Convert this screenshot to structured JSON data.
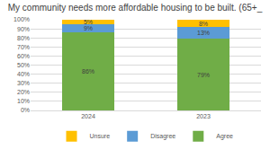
{
  "chart_data": {
    "type": "bar",
    "title": "My community needs more affordable housing to be built. (65+_",
    "categories": [
      "2024",
      "2023"
    ],
    "series": [
      {
        "name": "Agree",
        "color": "#70ad47",
        "values": [
          86,
          79
        ],
        "value_labels": [
          "86%",
          "79%"
        ]
      },
      {
        "name": "Disagree",
        "color": "#5b9bd5",
        "values": [
          9,
          13
        ],
        "value_labels": [
          "9%",
          "13%"
        ]
      },
      {
        "name": "Unsure",
        "color": "#ffc000",
        "values": [
          5,
          8
        ],
        "value_labels": [
          "5%",
          "8%"
        ]
      }
    ],
    "stacked": true,
    "data_labels": true,
    "legend": "bottom",
    "grid": true,
    "ylim": [
      0,
      100
    ],
    "yticks": [
      {
        "value": 0,
        "label": "0%"
      },
      {
        "value": 10,
        "label": "10%"
      },
      {
        "value": 20,
        "label": "20%"
      },
      {
        "value": 30,
        "label": "30%"
      },
      {
        "value": 40,
        "label": "40%"
      },
      {
        "value": 50,
        "label": "50%"
      },
      {
        "value": 60,
        "label": "60%"
      },
      {
        "value": 70,
        "label": "70%"
      },
      {
        "value": 80,
        "label": "80%"
      },
      {
        "value": 90,
        "label": "90%"
      },
      {
        "value": 100,
        "label": "100%"
      }
    ]
  }
}
